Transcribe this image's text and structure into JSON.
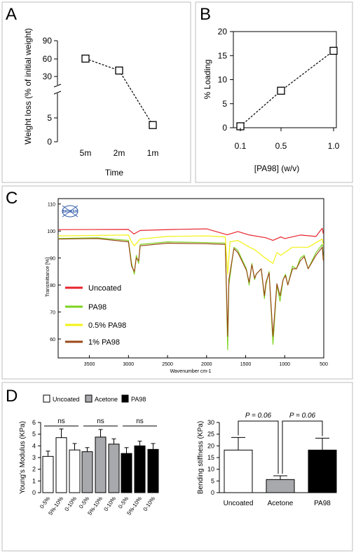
{
  "panels": {
    "A": {
      "letter": "A"
    },
    "B": {
      "letter": "B"
    },
    "C": {
      "letter": "C"
    },
    "D": {
      "letter": "D"
    }
  },
  "chart_data": [
    {
      "id": "A",
      "type": "line",
      "xlabel": "Time",
      "ylabel": "Weight loss (% of initial weight)",
      "categories": [
        "5m",
        "2m",
        "1m"
      ],
      "values": [
        60,
        40,
        3.5
      ],
      "y_ticks_upper": [
        "90",
        "60",
        "30"
      ],
      "y_ticks_lower": [
        "5",
        "0"
      ],
      "y_axis_break": true,
      "marker": "open-square",
      "line_style": "dashed"
    },
    {
      "id": "B",
      "type": "line",
      "xlabel": "[PA98] (w/v)",
      "ylabel": "% Loading",
      "categories": [
        "0.1",
        "0.5",
        "1.0"
      ],
      "values": [
        0.3,
        7.7,
        16
      ],
      "y_ticks": [
        "0",
        "5",
        "10",
        "15",
        "20"
      ],
      "ylim": [
        0,
        20
      ],
      "marker": "open-square",
      "line_style": "dashed"
    },
    {
      "id": "C",
      "type": "line",
      "xlabel": "Wavenumber cm-1",
      "ylabel": "Transmittance [%]",
      "x_ticks": [
        "3500",
        "3000",
        "2500",
        "2000",
        "1500",
        "1000",
        "500"
      ],
      "y_ticks": [
        "110",
        "100",
        "90",
        "80",
        "70",
        "60"
      ],
      "xlim": [
        3900,
        500
      ],
      "ylim": [
        53,
        112
      ],
      "logo": "BRUKER",
      "series": [
        {
          "name": "Uncoated",
          "color": "#e8242c",
          "points": [
            [
              3900,
              100.5
            ],
            [
              3000,
              100.6
            ],
            [
              2930,
              98.9
            ],
            [
              2850,
              100.2
            ],
            [
              2400,
              100.6
            ],
            [
              2000,
              100.8
            ],
            [
              1735,
              98.6
            ],
            [
              1600,
              99.8
            ],
            [
              1450,
              98.5
            ],
            [
              1240,
              97.5
            ],
            [
              1150,
              96.5
            ],
            [
              1050,
              97.8
            ],
            [
              1000,
              97.2
            ],
            [
              800,
              98.5
            ],
            [
              600,
              98
            ],
            [
              520,
              101
            ],
            [
              505,
              99
            ]
          ]
        },
        {
          "name": "PA98",
          "color": "#7dd321",
          "points": [
            [
              3900,
              97.2
            ],
            [
              3400,
              97.5
            ],
            [
              3000,
              96.5
            ],
            [
              2960,
              88
            ],
            [
              2925,
              84
            ],
            [
              2900,
              91
            ],
            [
              2870,
              88
            ],
            [
              2850,
              95
            ],
            [
              2500,
              96
            ],
            [
              2000,
              95.7
            ],
            [
              1760,
              95.5
            ],
            [
              1730,
              56
            ],
            [
              1715,
              80
            ],
            [
              1650,
              94
            ],
            [
              1600,
              92.8
            ],
            [
              1490,
              86
            ],
            [
              1455,
              80
            ],
            [
              1420,
              88
            ],
            [
              1385,
              82
            ],
            [
              1365,
              84
            ],
            [
              1300,
              86
            ],
            [
              1260,
              75
            ],
            [
              1240,
              80
            ],
            [
              1200,
              85
            ],
            [
              1150,
              58
            ],
            [
              1100,
              80
            ],
            [
              1060,
              74
            ],
            [
              1020,
              82
            ],
            [
              990,
              84
            ],
            [
              960,
              80
            ],
            [
              900,
              87
            ],
            [
              850,
              86
            ],
            [
              800,
              90
            ],
            [
              750,
              91
            ],
            [
              700,
              86
            ],
            [
              600,
              92
            ],
            [
              520,
              95
            ],
            [
              505,
              90
            ]
          ]
        },
        {
          "name": "0.5% PA98",
          "color": "#f2f215",
          "points": [
            [
              3900,
              98.2
            ],
            [
              3000,
              98.5
            ],
            [
              2960,
              96
            ],
            [
              2925,
              94.5
            ],
            [
              2850,
              97
            ],
            [
              2500,
              98
            ],
            [
              2000,
              98.2
            ],
            [
              1760,
              97.8
            ],
            [
              1730,
              84
            ],
            [
              1700,
              96
            ],
            [
              1600,
              96.5
            ],
            [
              1450,
              94
            ],
            [
              1380,
              93
            ],
            [
              1250,
              90
            ],
            [
              1150,
              88
            ],
            [
              1100,
              92
            ],
            [
              1050,
              91
            ],
            [
              900,
              94
            ],
            [
              700,
              94
            ],
            [
              520,
              97
            ],
            [
              505,
              95
            ]
          ]
        },
        {
          "name": "1% PA98",
          "color": "#9b4a1a",
          "points": [
            [
              3900,
              97
            ],
            [
              3400,
              97.2
            ],
            [
              3000,
              96
            ],
            [
              2960,
              87
            ],
            [
              2925,
              85
            ],
            [
              2900,
              90
            ],
            [
              2870,
              89
            ],
            [
              2850,
              94.5
            ],
            [
              2500,
              95.5
            ],
            [
              2000,
              95.3
            ],
            [
              1760,
              95
            ],
            [
              1730,
              61
            ],
            [
              1715,
              82
            ],
            [
              1650,
              93.5
            ],
            [
              1600,
              92
            ],
            [
              1490,
              85.5
            ],
            [
              1455,
              81
            ],
            [
              1420,
              87.5
            ],
            [
              1385,
              82.5
            ],
            [
              1365,
              84
            ],
            [
              1300,
              86
            ],
            [
              1260,
              76
            ],
            [
              1240,
              81
            ],
            [
              1200,
              84.5
            ],
            [
              1150,
              61
            ],
            [
              1100,
              80.5
            ],
            [
              1060,
              76
            ],
            [
              1020,
              82
            ],
            [
              990,
              83.5
            ],
            [
              960,
              80
            ],
            [
              900,
              86
            ],
            [
              850,
              86
            ],
            [
              800,
              89
            ],
            [
              750,
              90.5
            ],
            [
              700,
              86
            ],
            [
              600,
              91
            ],
            [
              520,
              94
            ],
            [
              505,
              89
            ]
          ]
        }
      ]
    },
    {
      "id": "D-left",
      "type": "bar",
      "ylabel": "Young's Modulus (KPa)",
      "ylim": [
        0,
        6
      ],
      "y_ticks": [
        "0",
        "1",
        "2",
        "3",
        "4",
        "5",
        "6"
      ],
      "categories": [
        "0-5%",
        "5%-10%",
        "0-10%"
      ],
      "significance_label": "ns",
      "groups": [
        {
          "name": "Uncoated",
          "color": "#ffffff",
          "values": [
            3.1,
            4.7,
            3.65
          ],
          "errors": [
            0.45,
            0.75,
            0.55
          ]
        },
        {
          "name": "Acetone",
          "color": "#a7a9ac",
          "values": [
            3.5,
            4.75,
            4.15
          ],
          "errors": [
            0.35,
            0.65,
            0.45
          ]
        },
        {
          "name": "PA98",
          "color": "#000000",
          "values": [
            3.35,
            4.0,
            3.7
          ],
          "errors": [
            0.5,
            0.4,
            0.5
          ]
        }
      ]
    },
    {
      "id": "D-right",
      "type": "bar",
      "ylabel": "Bending stiffness (KPa)",
      "ylim": [
        0,
        30
      ],
      "y_ticks": [
        "0",
        "5",
        "10",
        "15",
        "20",
        "25",
        "30"
      ],
      "categories": [
        "Uncoated",
        "Acetone",
        "PA98"
      ],
      "colors": [
        "#ffffff",
        "#a7a9ac",
        "#000000"
      ],
      "values": [
        18.2,
        5.6,
        18.2
      ],
      "errors": [
        5.4,
        1.6,
        5.1
      ],
      "p_values": [
        "P = 0.06",
        "P = 0.06"
      ]
    }
  ]
}
